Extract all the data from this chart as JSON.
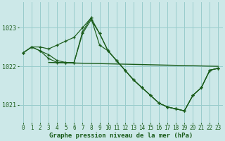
{
  "title": "Graphe pression niveau de la mer (hPa)",
  "background_color": "#cce8e8",
  "grid_color": "#99cccc",
  "line_color": "#1a5c1a",
  "xlim": [
    -0.5,
    23.5
  ],
  "ylim": [
    1020.55,
    1023.65
  ],
  "yticks": [
    1021,
    1022,
    1023
  ],
  "xticks": [
    0,
    1,
    2,
    3,
    4,
    5,
    6,
    7,
    8,
    9,
    10,
    11,
    12,
    13,
    14,
    15,
    16,
    17,
    18,
    19,
    20,
    21,
    22,
    23
  ],
  "series1": {
    "x": [
      0,
      1,
      2,
      3,
      4,
      5,
      6,
      7,
      8,
      9,
      10,
      11,
      12,
      13,
      14,
      15,
      16,
      17,
      18,
      19,
      20,
      21,
      22,
      23
    ],
    "y": [
      1022.35,
      1022.5,
      1022.5,
      1022.45,
      1022.55,
      1022.65,
      1022.75,
      1023.0,
      1023.25,
      1022.55,
      1022.4,
      1022.15,
      1021.9,
      1021.65,
      1021.45,
      1021.25,
      1021.05,
      1020.95,
      1020.9,
      1020.85,
      1021.25,
      1021.45,
      1021.9,
      1021.95
    ]
  },
  "series2": {
    "x": [
      0,
      1,
      2,
      3,
      4,
      5,
      6,
      7,
      8,
      9,
      10,
      11,
      12,
      13,
      14,
      15,
      16,
      17,
      18,
      19,
      20,
      21,
      22,
      23
    ],
    "y": [
      1022.35,
      1022.5,
      1022.4,
      1022.3,
      1022.15,
      1022.1,
      1022.1,
      1022.9,
      1023.25,
      1022.85,
      1022.4,
      1022.15,
      1021.9,
      1021.65,
      1021.45,
      1021.25,
      1021.05,
      1020.95,
      1020.9,
      1020.85,
      1021.25,
      1021.45,
      1021.9,
      1021.95
    ]
  },
  "series3": {
    "x": [
      0,
      1,
      2,
      3,
      4,
      5,
      6,
      7,
      8,
      9,
      10,
      11,
      12,
      13,
      14,
      15,
      16,
      17,
      18,
      19,
      20,
      21,
      22,
      23
    ],
    "y": [
      1022.35,
      1022.5,
      1022.4,
      1022.2,
      1022.1,
      1022.1,
      1022.1,
      1022.85,
      1023.2,
      1022.85,
      1022.4,
      1022.15,
      1021.9,
      1021.65,
      1021.45,
      1021.25,
      1021.05,
      1020.95,
      1020.9,
      1020.85,
      1021.25,
      1021.45,
      1021.9,
      1021.95
    ]
  },
  "flat_line": {
    "x": [
      3,
      23
    ],
    "y": [
      1022.1,
      1022.0
    ]
  },
  "figsize": [
    3.2,
    2.0
  ],
  "dpi": 100,
  "title_fontsize": 6.5,
  "tick_fontsize": 5.5
}
